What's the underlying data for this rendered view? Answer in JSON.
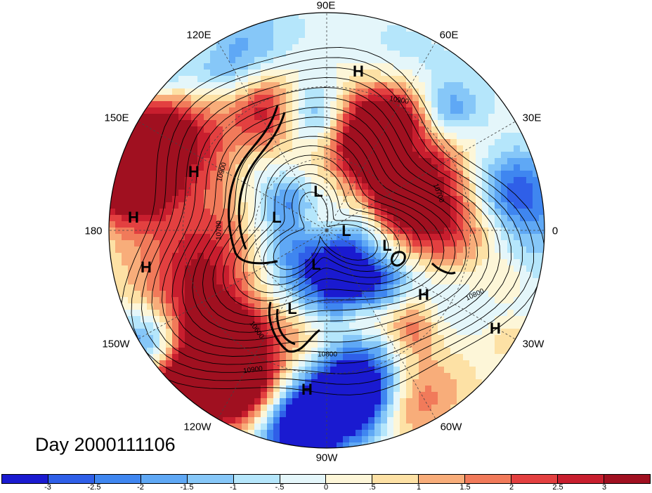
{
  "map": {
    "projection": "north-polar-stereographic",
    "longitude_labels": [
      {
        "text": "90E",
        "name": "lon-label-90e"
      },
      {
        "text": "60E",
        "name": "lon-label-60e"
      },
      {
        "text": "30E",
        "name": "lon-label-30e"
      },
      {
        "text": "0",
        "name": "lon-label-0"
      },
      {
        "text": "30W",
        "name": "lon-label-30w"
      },
      {
        "text": "60W",
        "name": "lon-label-60w"
      },
      {
        "text": "90W",
        "name": "lon-label-90w"
      },
      {
        "text": "120W",
        "name": "lon-label-120w"
      },
      {
        "text": "150W",
        "name": "lon-label-150w"
      },
      {
        "text": "180",
        "name": "lon-label-180"
      },
      {
        "text": "150E",
        "name": "lon-label-150e"
      },
      {
        "text": "120E",
        "name": "lon-label-120e"
      }
    ],
    "pressure_centers": [
      {
        "text": "H",
        "name": "high-center"
      },
      {
        "text": "H",
        "name": "high-center"
      },
      {
        "text": "H",
        "name": "high-center"
      },
      {
        "text": "H",
        "name": "high-center"
      },
      {
        "text": "H",
        "name": "high-center"
      },
      {
        "text": "H",
        "name": "high-center"
      },
      {
        "text": "H",
        "name": "high-center"
      },
      {
        "text": "L",
        "name": "low-center"
      },
      {
        "text": "L",
        "name": "low-center"
      },
      {
        "text": "L",
        "name": "low-center"
      },
      {
        "text": "L",
        "name": "low-center"
      },
      {
        "text": "L",
        "name": "low-center"
      },
      {
        "text": "L",
        "name": "low-center"
      }
    ],
    "contour_labels": [
      "10900",
      "10700",
      "10800",
      "10900",
      "10600",
      "10900",
      "10800",
      "10700"
    ],
    "date_label": "Day 2000111106",
    "colors": {
      "grid_line": "#444444",
      "contour": "#000000",
      "land_outline": "#000000"
    }
  },
  "colorbar": {
    "ticks": [
      "-3",
      "-2.5",
      "-2",
      "-1.5",
      "-1",
      "-.5",
      "0",
      ".5",
      "1",
      "1.5",
      "2",
      "2.5",
      "3"
    ],
    "colors": [
      "#1a1ad0",
      "#2f5fe8",
      "#3f86f0",
      "#5fa8f5",
      "#86c7f8",
      "#b5e6fb",
      "#e4f6fa",
      "#fdf6d8",
      "#fde1a5",
      "#f8ad7a",
      "#f17a5a",
      "#e34040",
      "#c81e2e",
      "#a01020"
    ]
  }
}
